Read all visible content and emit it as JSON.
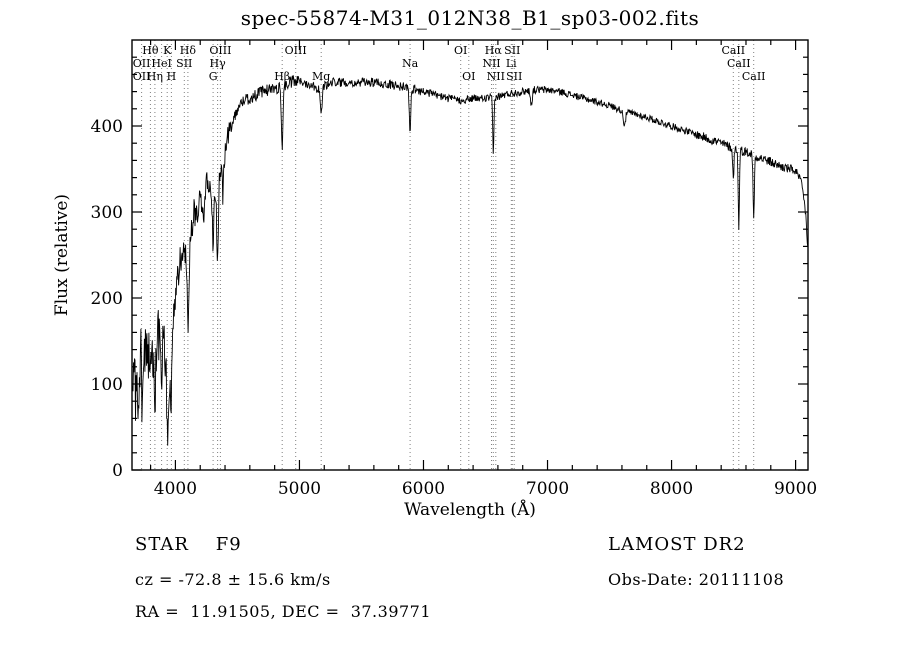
{
  "page": {
    "title": "spec-55874-M31_012N38_B1_sp03-002.fits"
  },
  "axes": {
    "xlabel": "Wavelength (Å)",
    "ylabel": "Flux (relative)",
    "x_major_ticks": [
      4000,
      5000,
      6000,
      7000,
      8000,
      9000
    ],
    "y_major_ticks": [
      0,
      100,
      200,
      300,
      400
    ],
    "x_minor_step": 200,
    "y_minor_step": 20,
    "xlim": [
      3650,
      9100
    ],
    "ylim": [
      0,
      500
    ]
  },
  "footer": {
    "class_label": "STAR    F9",
    "survey": "LAMOST DR2",
    "cz": "cz = -72.8 ± 15.6 km/s",
    "obs_date": "Obs-Date: 20111108",
    "ra_dec": "RA =  11.91505, DEC =  37.39771"
  },
  "chart_data": {
    "type": "line",
    "title": "spec-55874-M31_012N38_B1_sp03-002.fits",
    "xlabel": "Wavelength (Å)",
    "ylabel": "Flux (relative)",
    "xlim": [
      3650,
      9100
    ],
    "ylim": [
      0,
      500
    ],
    "grid": false,
    "legend": "none",
    "series": [
      {
        "name": "spectrum-flux-relative",
        "envelope_points": [
          [
            3650,
            95
          ],
          [
            3680,
            125
          ],
          [
            3700,
            80
          ],
          [
            3720,
            140
          ],
          [
            3740,
            105
          ],
          [
            3760,
            150
          ],
          [
            3780,
            125
          ],
          [
            3800,
            150
          ],
          [
            3820,
            135
          ],
          [
            3840,
            125
          ],
          [
            3860,
            160
          ],
          [
            3880,
            145
          ],
          [
            3900,
            170
          ],
          [
            3920,
            130
          ],
          [
            3940,
            95
          ],
          [
            3960,
            120
          ],
          [
            3980,
            165
          ],
          [
            4000,
            210
          ],
          [
            4030,
            235
          ],
          [
            4060,
            255
          ],
          [
            4090,
            240
          ],
          [
            4120,
            265
          ],
          [
            4150,
            295
          ],
          [
            4180,
            305
          ],
          [
            4220,
            325
          ],
          [
            4260,
            335
          ],
          [
            4300,
            315
          ],
          [
            4340,
            330
          ],
          [
            4380,
            355
          ],
          [
            4420,
            385
          ],
          [
            4460,
            405
          ],
          [
            4500,
            420
          ],
          [
            4550,
            430
          ],
          [
            4600,
            432
          ],
          [
            4650,
            436
          ],
          [
            4700,
            440
          ],
          [
            4750,
            442
          ],
          [
            4800,
            444
          ],
          [
            4850,
            444
          ],
          [
            4900,
            448
          ],
          [
            4950,
            452
          ],
          [
            5000,
            452
          ],
          [
            5050,
            450
          ],
          [
            5100,
            448
          ],
          [
            5150,
            444
          ],
          [
            5200,
            446
          ],
          [
            5250,
            450
          ],
          [
            5300,
            452
          ],
          [
            5350,
            450
          ],
          [
            5400,
            452
          ],
          [
            5450,
            450
          ],
          [
            5500,
            450
          ],
          [
            5550,
            452
          ],
          [
            5600,
            450
          ],
          [
            5650,
            450
          ],
          [
            5700,
            448
          ],
          [
            5750,
            448
          ],
          [
            5800,
            446
          ],
          [
            5850,
            446
          ],
          [
            5900,
            444
          ],
          [
            5950,
            442
          ],
          [
            6000,
            440
          ],
          [
            6100,
            436
          ],
          [
            6200,
            432
          ],
          [
            6300,
            430
          ],
          [
            6400,
            432
          ],
          [
            6500,
            432
          ],
          [
            6600,
            434
          ],
          [
            6700,
            438
          ],
          [
            6800,
            440
          ],
          [
            6900,
            442
          ],
          [
            7000,
            442
          ],
          [
            7100,
            440
          ],
          [
            7200,
            436
          ],
          [
            7300,
            432
          ],
          [
            7400,
            428
          ],
          [
            7500,
            424
          ],
          [
            7600,
            418
          ],
          [
            7700,
            414
          ],
          [
            7800,
            410
          ],
          [
            7900,
            405
          ],
          [
            8000,
            400
          ],
          [
            8100,
            395
          ],
          [
            8200,
            390
          ],
          [
            8300,
            385
          ],
          [
            8400,
            380
          ],
          [
            8500,
            374
          ],
          [
            8600,
            370
          ],
          [
            8700,
            364
          ],
          [
            8800,
            358
          ],
          [
            8900,
            352
          ],
          [
            9000,
            348
          ],
          [
            9050,
            332
          ],
          [
            9080,
            300
          ],
          [
            9100,
            252
          ]
        ],
        "absorption_features": [
          {
            "wavelength": 3705,
            "depth": 55,
            "width": 4
          },
          {
            "wavelength": 3733,
            "depth": 50,
            "width": 4
          },
          {
            "wavelength": 3798,
            "depth": 35,
            "width": 4
          },
          {
            "wavelength": 3835,
            "depth": 40,
            "width": 4
          },
          {
            "wavelength": 3889,
            "depth": 45,
            "width": 4
          },
          {
            "wavelength": 3934,
            "depth": 70,
            "width": 5
          },
          {
            "wavelength": 3968,
            "depth": 55,
            "width": 5
          },
          {
            "wavelength": 4101,
            "depth": 75,
            "width": 6
          },
          {
            "wavelength": 4226,
            "depth": 40,
            "width": 5
          },
          {
            "wavelength": 4304,
            "depth": 60,
            "width": 5
          },
          {
            "wavelength": 4340,
            "depth": 85,
            "width": 6
          },
          {
            "wavelength": 4383,
            "depth": 40,
            "width": 5
          },
          {
            "wavelength": 4861,
            "depth": 70,
            "width": 6
          },
          {
            "wavelength": 5175,
            "depth": 28,
            "width": 8
          },
          {
            "wavelength": 5892,
            "depth": 55,
            "width": 6
          },
          {
            "wavelength": 6563,
            "depth": 65,
            "width": 5
          },
          {
            "wavelength": 6870,
            "depth": 18,
            "width": 6
          },
          {
            "wavelength": 7620,
            "depth": 15,
            "width": 9
          },
          {
            "wavelength": 8498,
            "depth": 35,
            "width": 5
          },
          {
            "wavelength": 8542,
            "depth": 88,
            "width": 5
          },
          {
            "wavelength": 8662,
            "depth": 75,
            "width": 5
          }
        ],
        "noise_bands": [
          {
            "from": 3650,
            "to": 4000,
            "sigma": 30
          },
          {
            "from": 4000,
            "to": 4250,
            "sigma": 20
          },
          {
            "from": 4250,
            "to": 4450,
            "sigma": 13
          },
          {
            "from": 4450,
            "to": 5000,
            "sigma": 7
          },
          {
            "from": 5000,
            "to": 6000,
            "sigma": 5.5
          },
          {
            "from": 6000,
            "to": 7000,
            "sigma": 4.5
          },
          {
            "from": 7000,
            "to": 8200,
            "sigma": 4
          },
          {
            "from": 8200,
            "to": 9100,
            "sigma": 5.5
          }
        ]
      }
    ],
    "line_markers": [
      {
        "label": "Hθ",
        "wavelength": 3798,
        "row": 1
      },
      {
        "label": "K",
        "wavelength": 3934,
        "row": 1
      },
      {
        "label": "Hδ",
        "wavelength": 4101,
        "row": 1
      },
      {
        "label": "OIII",
        "wavelength": 4363,
        "row": 1
      },
      {
        "label": "OIII",
        "wavelength": 4970,
        "row": 1
      },
      {
        "label": "OI",
        "wavelength": 6300,
        "row": 1
      },
      {
        "label": "Hα",
        "wavelength": 6563,
        "row": 1
      },
      {
        "label": "SII",
        "wavelength": 6716,
        "row": 1
      },
      {
        "label": "CaII",
        "wavelength": 8498,
        "row": 1
      },
      {
        "label": "OII",
        "wavelength": 3727,
        "row": 2
      },
      {
        "label": "HeI",
        "wavelength": 3889,
        "row": 2
      },
      {
        "label": "SII",
        "wavelength": 4072,
        "row": 2
      },
      {
        "label": "Hγ",
        "wavelength": 4340,
        "row": 2
      },
      {
        "label": "Na",
        "wavelength": 5892,
        "row": 2
      },
      {
        "label": "NII",
        "wavelength": 6548,
        "row": 2
      },
      {
        "label": "Li",
        "wavelength": 6708,
        "row": 2
      },
      {
        "label": "CaII",
        "wavelength": 8542,
        "row": 2
      },
      {
        "label": "OII",
        "wavelength": 3727,
        "row": 3
      },
      {
        "label": "Hη",
        "wavelength": 3835,
        "row": 3
      },
      {
        "label": "H",
        "wavelength": 3968,
        "row": 3
      },
      {
        "label": "G",
        "wavelength": 4304,
        "row": 3
      },
      {
        "label": "Hβ",
        "wavelength": 4861,
        "row": 3
      },
      {
        "label": "Mg",
        "wavelength": 5175,
        "row": 3
      },
      {
        "label": "OI",
        "wavelength": 6365,
        "row": 3
      },
      {
        "label": "NII",
        "wavelength": 6583,
        "row": 3
      },
      {
        "label": "SII",
        "wavelength": 6731,
        "row": 3
      },
      {
        "label": "CaII",
        "wavelength": 8662,
        "row": 3
      }
    ]
  }
}
